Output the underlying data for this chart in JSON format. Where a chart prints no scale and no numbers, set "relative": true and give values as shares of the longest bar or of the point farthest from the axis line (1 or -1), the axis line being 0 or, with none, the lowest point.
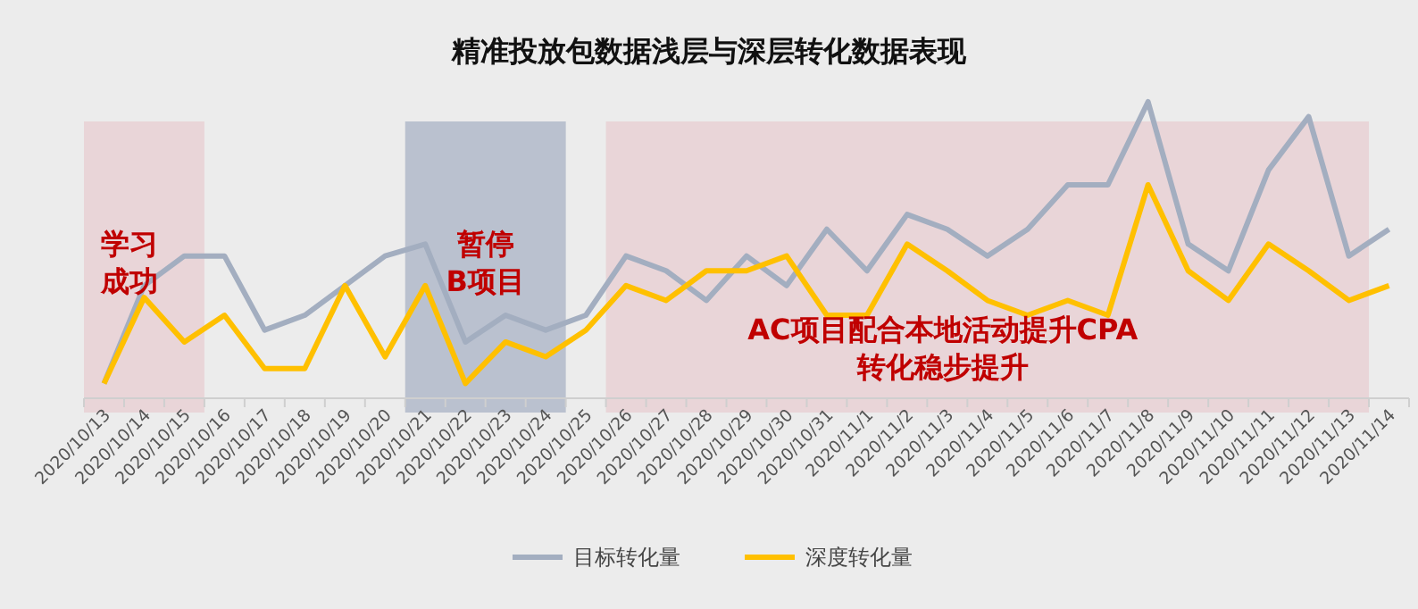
{
  "chart_data": {
    "type": "line",
    "title": "精准投放包数据浅层与深层转化数据表现",
    "relative": true,
    "legend": "bottom",
    "marker": "none",
    "line_style": "solid",
    "categories": [
      "2020/10/13",
      "2020/10/14",
      "2020/10/15",
      "2020/10/16",
      "2020/10/17",
      "2020/10/18",
      "2020/10/19",
      "2020/10/20",
      "2020/10/21",
      "2020/10/22",
      "2020/10/23",
      "2020/10/24",
      "2020/10/25",
      "2020/10/26",
      "2020/10/27",
      "2020/10/28",
      "2020/10/29",
      "2020/10/30",
      "2020/10/31",
      "2020/11/1",
      "2020/11/2",
      "2020/11/3",
      "2020/11/4",
      "2020/11/5",
      "2020/11/6",
      "2020/11/7",
      "2020/11/8",
      "2020/11/9",
      "2020/11/10",
      "2020/11/11",
      "2020/11/12",
      "2020/11/13",
      "2020/11/14"
    ],
    "series": [
      {
        "name": "目标转化量",
        "color": "#a3aec0",
        "values": [
          0.05,
          0.38,
          0.48,
          0.48,
          0.23,
          0.28,
          0.38,
          0.48,
          0.52,
          0.19,
          0.28,
          0.23,
          0.28,
          0.48,
          0.43,
          0.33,
          0.48,
          0.38,
          0.57,
          0.43,
          0.62,
          0.57,
          0.48,
          0.57,
          0.72,
          0.72,
          1,
          0.52,
          0.43,
          0.77,
          0.95,
          0.48,
          0.57
        ]
      },
      {
        "name": "深度转化量",
        "color": "#ffc000",
        "values": [
          0.05,
          0.34,
          0.19,
          0.28,
          0.1,
          0.1,
          0.38,
          0.14,
          0.38,
          0.05,
          0.19,
          0.14,
          0.23,
          0.38,
          0.33,
          0.43,
          0.43,
          0.48,
          0.28,
          0.28,
          0.52,
          0.43,
          0.33,
          0.28,
          0.33,
          0.28,
          0.72,
          0.43,
          0.33,
          0.52,
          0.43,
          0.33,
          0.38
        ]
      }
    ],
    "bands": [
      {
        "axis": "x",
        "from": "2020/10/13",
        "to": "2020/10/15",
        "label": "学习成功",
        "color": "#e8cdd2"
      },
      {
        "axis": "x",
        "from": "2020/10/21",
        "to": "2020/10/24",
        "label": "暂停B项目",
        "color": "#aab3c5"
      },
      {
        "axis": "x",
        "from": "2020/10/26",
        "to": "2020/11/13",
        "label": "AC项目配合本地活动提升CPA转化稳步提升",
        "color": "#e8cdd2"
      }
    ]
  }
}
